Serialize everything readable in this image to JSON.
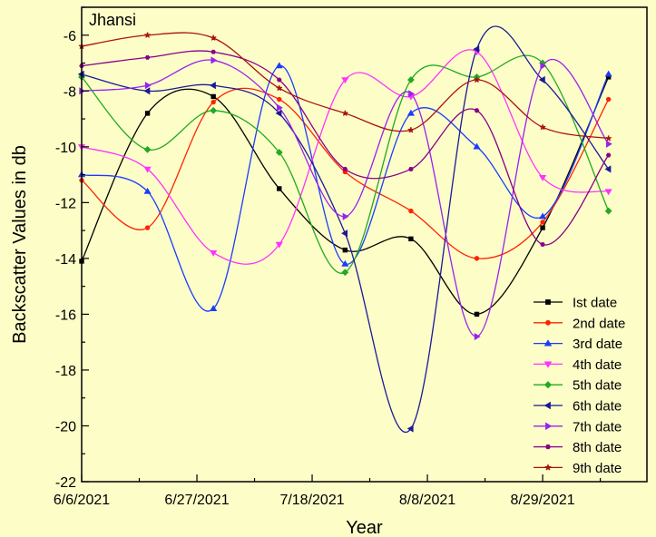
{
  "chart_data": {
    "type": "line",
    "title": "Jhansi",
    "xlabel": "Year",
    "ylabel": "Backscatter Values in db",
    "x_dates": [
      "2021-06-06",
      "2021-06-18",
      "2021-06-30",
      "2021-07-12",
      "2021-07-24",
      "2021-08-05",
      "2021-08-17",
      "2021-08-29",
      "2021-09-10"
    ],
    "xticks": [
      "6/6/2021",
      "6/27/2021",
      "7/18/2021",
      "8/8/2021",
      "8/29/2021"
    ],
    "xlim": [
      "2021-06-06",
      "2021-09-17"
    ],
    "ylim": [
      -22,
      -5
    ],
    "yticks": [
      -22,
      -20,
      -18,
      -16,
      -14,
      -12,
      -10,
      -8,
      -6
    ],
    "legend_position": "bottom-right",
    "smooth": true,
    "series": [
      {
        "name": "Ist date",
        "color": "#000000",
        "marker": "square",
        "values": [
          -14.1,
          -8.8,
          -8.2,
          -11.5,
          -13.7,
          -13.3,
          -16.0,
          -12.9,
          -7.5
        ]
      },
      {
        "name": "2nd date",
        "color": "#ff2200",
        "marker": "circle",
        "values": [
          -11.2,
          -12.9,
          -8.4,
          -8.3,
          -10.9,
          -12.3,
          -14.0,
          -12.7,
          -8.3
        ]
      },
      {
        "name": "3rd date",
        "color": "#1a3cff",
        "marker": "triangle",
        "values": [
          -11.0,
          -11.6,
          -15.8,
          -7.1,
          -14.2,
          -8.8,
          -10.0,
          -12.5,
          -7.4
        ]
      },
      {
        "name": "4th date",
        "color": "#ff33ff",
        "marker": "tri-down",
        "values": [
          -10.0,
          -10.8,
          -13.8,
          -13.5,
          -7.6,
          -8.2,
          -6.6,
          -11.1,
          -11.6
        ]
      },
      {
        "name": "5th date",
        "color": "#22aa22",
        "marker": "diamond",
        "values": [
          -7.5,
          -10.1,
          -8.7,
          -10.2,
          -14.5,
          -7.6,
          -7.5,
          -7.0,
          -12.3
        ]
      },
      {
        "name": "6th date",
        "color": "#1a1a99",
        "marker": "tri-left",
        "values": [
          -7.4,
          -8.0,
          -7.8,
          -8.8,
          -13.1,
          -20.1,
          -6.5,
          -7.6,
          -10.8
        ]
      },
      {
        "name": "7th date",
        "color": "#9922ee",
        "marker": "tri-right",
        "values": [
          -8.0,
          -7.8,
          -6.9,
          -8.6,
          -12.5,
          -8.1,
          -16.8,
          -7.1,
          -9.9
        ]
      },
      {
        "name": "8th date",
        "color": "#880088",
        "marker": "hexagon",
        "values": [
          -7.1,
          -6.8,
          -6.6,
          -7.6,
          -10.8,
          -10.8,
          -8.7,
          -13.5,
          -10.3
        ]
      },
      {
        "name": "9th date",
        "color": "#aa1111",
        "marker": "star",
        "values": [
          -6.4,
          -6.0,
          -6.1,
          -7.9,
          -8.8,
          -9.4,
          -7.6,
          -9.3,
          -9.7
        ]
      }
    ]
  }
}
